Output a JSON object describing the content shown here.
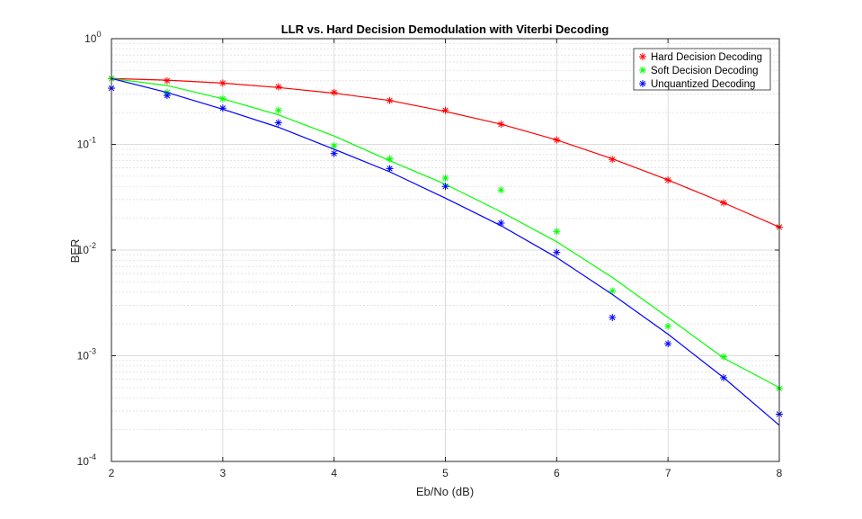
{
  "chart_data": {
    "type": "line",
    "title": "LLR vs. Hard Decision Demodulation with Viterbi Decoding",
    "xlabel": "Eb/No (dB)",
    "ylabel": "BER",
    "xlim": [
      2,
      8
    ],
    "ylim": [
      0.0001,
      1
    ],
    "yscale": "log",
    "grid": true,
    "legend_position": "top-right",
    "x_ticks": [
      "2",
      "3",
      "4",
      "5",
      "6",
      "7",
      "8"
    ],
    "y_ticks": [
      {
        "base": "10",
        "exp": "0"
      },
      {
        "base": "10",
        "exp": "-1"
      },
      {
        "base": "10",
        "exp": "-2"
      },
      {
        "base": "10",
        "exp": "-3"
      },
      {
        "base": "10",
        "exp": "-4"
      }
    ],
    "series": [
      {
        "name": "Hard Decision Decoding",
        "color": "#ff0000",
        "marker": "asterisk",
        "points": {
          "x": [
            2,
            2.5,
            3,
            3.5,
            4,
            4.5,
            5,
            5.5,
            6,
            6.5,
            7,
            7.5,
            8
          ],
          "y": [
            0.42,
            0.4,
            0.38,
            0.35,
            0.31,
            0.26,
            0.21,
            0.155,
            0.11,
            0.072,
            0.046,
            0.028,
            0.0165
          ]
        },
        "curve": {
          "x": [
            2,
            2.5,
            3,
            3.5,
            4,
            4.5,
            5,
            5.5,
            6,
            6.5,
            7,
            7.5,
            8
          ],
          "y": [
            0.42,
            0.405,
            0.38,
            0.345,
            0.305,
            0.26,
            0.205,
            0.155,
            0.11,
            0.073,
            0.046,
            0.028,
            0.0165
          ]
        }
      },
      {
        "name": "Soft Decision Decoding",
        "color": "#00ff00",
        "marker": "asterisk",
        "points": {
          "x": [
            2,
            2.5,
            3,
            3.5,
            4,
            4.5,
            5,
            5.5,
            6,
            6.5,
            7,
            7.5,
            8
          ],
          "y": [
            0.42,
            0.31,
            0.27,
            0.21,
            0.097,
            0.073,
            0.048,
            0.037,
            0.015,
            0.0041,
            0.0019,
            0.00098,
            0.00049
          ]
        },
        "curve": {
          "x": [
            2,
            2.5,
            3,
            3.5,
            4,
            4.5,
            5,
            5.5,
            6,
            6.5,
            7,
            7.5,
            8
          ],
          "y": [
            0.42,
            0.36,
            0.27,
            0.19,
            0.12,
            0.07,
            0.042,
            0.023,
            0.012,
            0.0055,
            0.0023,
            0.00095,
            0.0005
          ]
        }
      },
      {
        "name": "Unquantized Decoding",
        "color": "#0000ff",
        "marker": "asterisk",
        "points": {
          "x": [
            2,
            2.5,
            3,
            3.5,
            4,
            4.5,
            5,
            5.5,
            6,
            6.5,
            7,
            7.5,
            8
          ],
          "y": [
            0.34,
            0.29,
            0.22,
            0.16,
            0.082,
            0.059,
            0.04,
            0.018,
            0.0095,
            0.0023,
            0.0013,
            0.00062,
            0.00028
          ]
        },
        "curve": {
          "x": [
            2,
            2.5,
            3,
            3.5,
            4,
            4.5,
            5,
            5.5,
            6,
            6.5,
            7,
            7.5,
            8
          ],
          "y": [
            0.42,
            0.31,
            0.215,
            0.145,
            0.09,
            0.055,
            0.031,
            0.017,
            0.0085,
            0.0038,
            0.0016,
            0.00062,
            0.00022
          ]
        }
      }
    ]
  }
}
